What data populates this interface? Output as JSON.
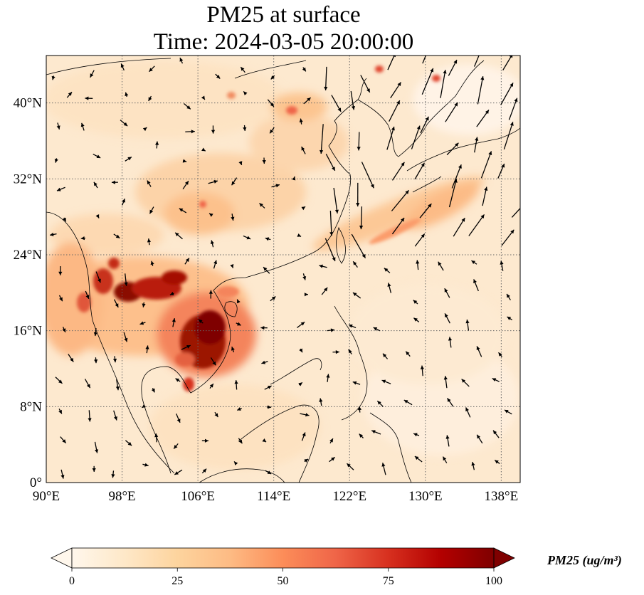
{
  "title": {
    "line1": "PM25 at surface",
    "line2": "Time: 2024-03-05 20:00:00"
  },
  "map": {
    "projection": "PlateCarree",
    "lon_range": [
      90,
      140
    ],
    "lat_range": [
      0,
      45
    ],
    "gridlines": true,
    "grid_style": "dotted",
    "lon_ticks": [
      {
        "value": 90,
        "label": "90°E"
      },
      {
        "value": 98,
        "label": "98°E"
      },
      {
        "value": 106,
        "label": "106°E"
      },
      {
        "value": 114,
        "label": "114°E"
      },
      {
        "value": 122,
        "label": "122°E"
      },
      {
        "value": 130,
        "label": "130°E"
      },
      {
        "value": 138,
        "label": "138°E"
      }
    ],
    "lat_ticks": [
      {
        "value": 0,
        "label": "0°"
      },
      {
        "value": 8,
        "label": "8°N"
      },
      {
        "value": 16,
        "label": "16°N"
      },
      {
        "value": 24,
        "label": "24°N"
      },
      {
        "value": 32,
        "label": "32°N"
      },
      {
        "value": 40,
        "label": "40°N"
      }
    ],
    "wind_vectors": "black arrows"
  },
  "colorbar": {
    "colormap": "OrRd",
    "extend": "both",
    "min": 0,
    "max": 100,
    "ticks": [
      {
        "value": 0,
        "label": "0"
      },
      {
        "value": 25,
        "label": "25"
      },
      {
        "value": 50,
        "label": "50"
      },
      {
        "value": 75,
        "label": "75"
      },
      {
        "value": 100,
        "label": "100"
      }
    ],
    "label": "PM25 (ug/m³)",
    "colors": [
      "#fff7ec",
      "#fee8c8",
      "#fdd49e",
      "#fdbb84",
      "#fc8d59",
      "#ef6548",
      "#d7301f",
      "#b30000",
      "#7f0000"
    ]
  }
}
